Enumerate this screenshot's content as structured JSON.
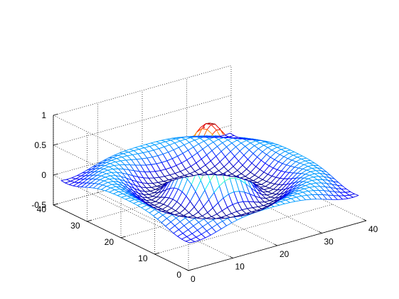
{
  "chart_data": {
    "type": "surface-mesh",
    "function": "z = sin(r)/r, r = sqrt(x^2 + y^2)",
    "colormap": "jet",
    "grid_points": 33,
    "x_domain": [
      -8,
      8
    ],
    "xlim": [
      0,
      40
    ],
    "ylim": [
      0,
      40
    ],
    "zlim": [
      -0.5,
      1
    ],
    "z_range_data": [
      -0.22,
      0.99
    ],
    "grid": true,
    "x_ticks": [
      "0",
      "10",
      "20",
      "30",
      "40"
    ],
    "y_ticks": [
      "0",
      "10",
      "20",
      "30",
      "40"
    ],
    "z_ticks": [
      "-0.5",
      "0",
      "0.5",
      "1"
    ],
    "title": "",
    "xlabel": "",
    "ylabel": "",
    "zlabel": ""
  }
}
